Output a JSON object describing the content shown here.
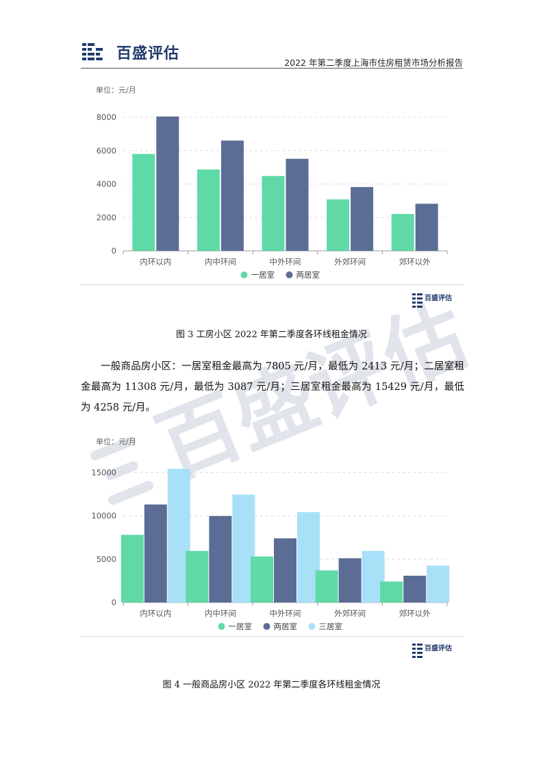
{
  "header": {
    "logo_text": "百盛评估",
    "report_title": "2022 年第二季度上海市住房租赁市场分析报告"
  },
  "watermark_text": "百盛评估",
  "figure3": {
    "caption": "图 3 工房小区 2022 年第二季度各环线租金情况",
    "mini_logo_text": "百盛评估"
  },
  "paragraph": {
    "text": "一般商品房小区：一居室租金最高为 7805 元/月，最低为 2413 元/月；二居室租金最高为 11308 元/月，最低为 3087 元/月；三居室租金最高为 15429 元/月，最低为 4258 元/月。"
  },
  "figure4": {
    "caption": "图 4  一般商品房小区 2022 年第二季度各环线租金情况",
    "mini_logo_text": "百盛评估"
  },
  "chart_data": [
    {
      "type": "bar",
      "unit_label": "单位：元/月",
      "categories": [
        "内环以内",
        "内中环间",
        "中外环间",
        "外郊环间",
        "郊环以外"
      ],
      "series": [
        {
          "name": "一居室",
          "color": "#5fd9a6",
          "values": [
            5800,
            4870,
            4480,
            3080,
            2210
          ]
        },
        {
          "name": "两居室",
          "color": "#5b6d95",
          "values": [
            8040,
            6600,
            5510,
            3820,
            2820
          ]
        }
      ],
      "yticks": [
        0,
        2000,
        4000,
        6000,
        8000
      ],
      "ylim": [
        0,
        8000
      ],
      "grid": true,
      "legend_position": "bottom"
    },
    {
      "type": "bar",
      "unit_label": "单位：元/月",
      "categories": [
        "内环以内",
        "内中环间",
        "中外环间",
        "外郊环间",
        "郊环以外"
      ],
      "series": [
        {
          "name": "一居室",
          "color": "#5fd9a6",
          "values": [
            7805,
            5950,
            5300,
            3700,
            2413
          ]
        },
        {
          "name": "两居室",
          "color": "#5b6d95",
          "values": [
            11308,
            9980,
            7400,
            5100,
            3087
          ]
        },
        {
          "name": "三居室",
          "color": "#a8e0f8",
          "values": [
            15429,
            12450,
            10430,
            5950,
            4258
          ]
        }
      ],
      "yticks": [
        0,
        5000,
        10000,
        15000
      ],
      "ylim": [
        0,
        15429
      ],
      "grid": true,
      "legend_position": "bottom"
    }
  ]
}
